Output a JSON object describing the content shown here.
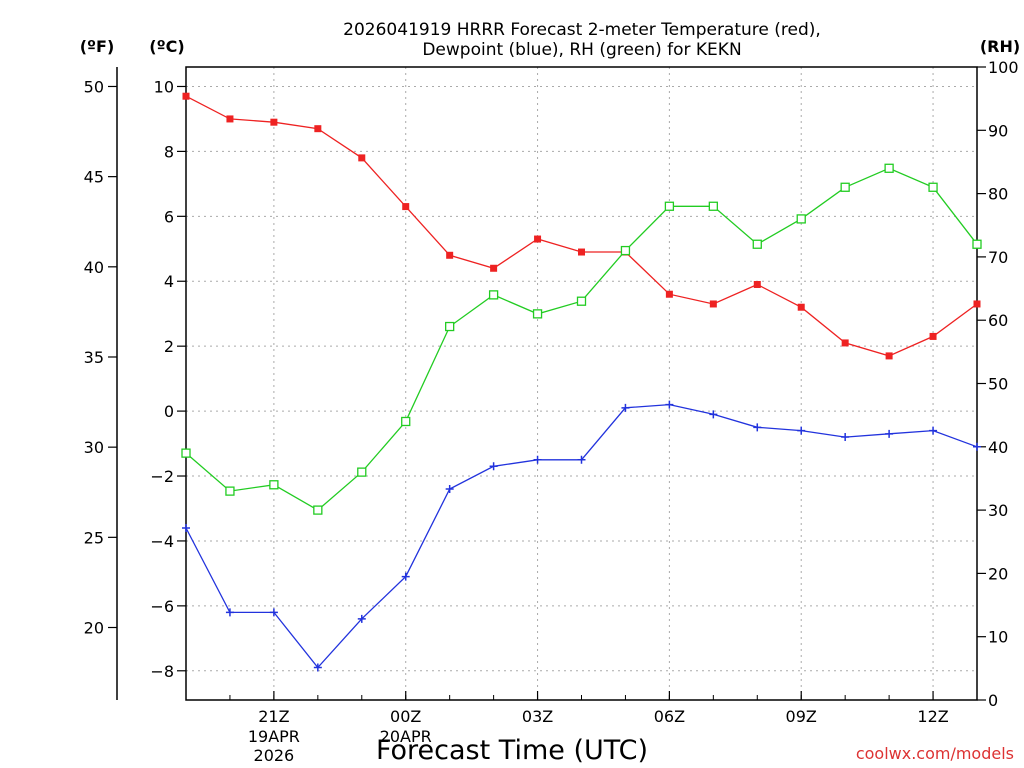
{
  "chart_data": {
    "type": "line",
    "title_line1": "2026041919 HRRR Forecast 2-meter Temperature (red),",
    "title_line2": "Dewpoint (blue), RH (green) for KEKN",
    "xlabel": "Forecast Time (UTC)",
    "watermark": "coolwx.com/models",
    "unit_f": "(ºF)",
    "unit_c": "(ºC)",
    "unit_rh": "(RH)",
    "x": [
      19,
      20,
      21,
      22,
      23,
      24,
      25,
      26,
      27,
      28,
      29,
      30,
      31,
      32,
      33,
      34,
      35,
      36,
      37
    ],
    "x_range": [
      19,
      37
    ],
    "x_ticks": [
      {
        "x": 21,
        "label": "21Z",
        "sub1": "19APR",
        "sub2": "2026"
      },
      {
        "x": 24,
        "label": "00Z",
        "sub1": "20APR",
        "sub2": ""
      },
      {
        "x": 27,
        "label": "03Z",
        "sub1": "",
        "sub2": ""
      },
      {
        "x": 30,
        "label": "06Z",
        "sub1": "",
        "sub2": ""
      },
      {
        "x": 33,
        "label": "09Z",
        "sub1": "",
        "sub2": ""
      },
      {
        "x": 36,
        "label": "12Z",
        "sub1": "",
        "sub2": ""
      }
    ],
    "celsius_axis": {
      "range": [
        -8.9,
        10.6
      ],
      "ticks": [
        10,
        8,
        6,
        4,
        2,
        0,
        -2,
        -4,
        -6,
        -8
      ]
    },
    "fahrenheit_axis": {
      "ticks": [
        50,
        45,
        40,
        35,
        30,
        25,
        20
      ]
    },
    "rh_axis": {
      "range": [
        0,
        100
      ],
      "ticks": [
        100,
        90,
        80,
        70,
        60,
        50,
        40,
        30,
        20,
        10,
        0
      ]
    },
    "series": [
      {
        "name": "Temperature",
        "axis": "celsius",
        "color": "#ee2222",
        "marker": "filled-square",
        "values": [
          9.7,
          9.0,
          8.9,
          8.7,
          7.8,
          6.3,
          4.8,
          4.4,
          5.3,
          4.9,
          4.9,
          3.6,
          3.3,
          3.9,
          3.2,
          2.1,
          1.7,
          2.3,
          3.3
        ]
      },
      {
        "name": "Dewpoint",
        "axis": "celsius",
        "color": "#2233dd",
        "marker": "plus",
        "values": [
          -3.6,
          -6.2,
          -6.2,
          -7.9,
          -6.4,
          -5.1,
          -2.4,
          -1.7,
          -1.5,
          -1.5,
          0.1,
          0.2,
          -0.1,
          -0.5,
          -0.6,
          -0.8,
          -0.7,
          -0.6,
          -1.1
        ]
      },
      {
        "name": "RH",
        "axis": "rh",
        "color": "#22cc22",
        "marker": "open-square",
        "values": [
          39,
          33,
          34,
          30,
          36,
          44,
          59,
          64,
          61,
          63,
          71,
          78,
          78,
          72,
          76,
          81,
          84,
          81,
          72
        ]
      }
    ]
  }
}
